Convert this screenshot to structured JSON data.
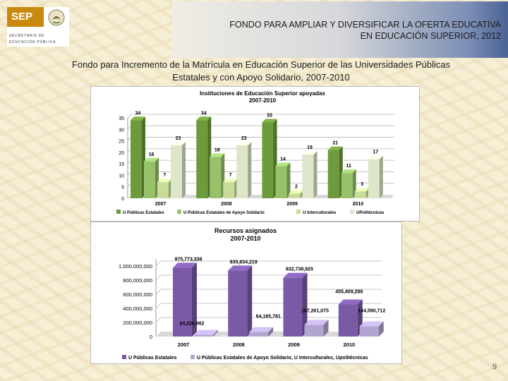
{
  "header": {
    "logo": {
      "brand": "SEP",
      "line1": "SECRETARÍA DE",
      "line2": "EDUCACIÓN PÚBLICA"
    },
    "title_line1": "FONDO PARA AMPLIAR Y DIVERSIFICAR LA OFERTA EDUCATIVA",
    "title_line2": "EN EDUCACIÓN SUPERIOR, 2012"
  },
  "subtitle": {
    "line1": "Fondo para Incremento de la Matrícula en Educación Superior de las Universidades Públicas",
    "line2": "Estatales y con Apoyo Solidario, 2007-2010"
  },
  "colors": {
    "purple": "#7a5aa6",
    "lavender": "#b3a5d1",
    "green1": "#6d9a3a",
    "green2": "#97c26a",
    "green3": "#c8dc9a",
    "green4": "#dde6c8"
  },
  "chart_data": [
    {
      "type": "bar",
      "title": "Instituciones de Educación Superior  apoyadas",
      "subtitle": "2007-2010",
      "categories": [
        "2007",
        "2008",
        "2009",
        "2010"
      ],
      "series": [
        {
          "name": "U Públicas Estatales",
          "values": [
            34,
            34,
            33,
            21
          ],
          "labels": [
            "34",
            "34",
            "33",
            "21"
          ]
        },
        {
          "name": "U Públicas Estatales de Apoyo Solidario",
          "values": [
            16,
            18,
            14,
            11
          ],
          "labels": [
            "16",
            "18",
            "14",
            "11"
          ]
        },
        {
          "name": "U Interculturales",
          "values": [
            7,
            7,
            2,
            3
          ],
          "labels": [
            "7",
            "7",
            "2",
            "3"
          ]
        },
        {
          "name": "UPolitécnicas",
          "values": [
            23,
            23,
            19,
            17
          ],
          "labels": [
            "23",
            "23",
            "19",
            "17"
          ]
        }
      ],
      "ylim": [
        0,
        35
      ],
      "yticks": [
        "0",
        "5",
        "10",
        "15",
        "20",
        "25",
        "30",
        "35"
      ]
    },
    {
      "type": "bar",
      "title": "Recursos asignados",
      "subtitle": "2007-2010",
      "categories": [
        "2007",
        "2008",
        "2009",
        "2010"
      ],
      "series": [
        {
          "name": "U Públicas Estatales",
          "values": [
            975773338,
            935834219,
            832738925,
            455409288
          ],
          "labels": [
            "975,773,338",
            "935,834,219",
            "832,738,925",
            "455,409,288"
          ]
        },
        {
          "name": "U Públicas Estatales de Apoyo Solidario, U Interculturales, Upolitécnicas",
          "values": [
            24226662,
            64165781,
            167261075,
            144590712
          ],
          "labels": [
            "24,226,662",
            "64,165,781",
            "167,261,075",
            "144,590,712"
          ]
        }
      ],
      "ylim": [
        0,
        1100000000
      ],
      "yticks": [
        "0",
        "200,000,000",
        "400,000,000",
        "600,000,000",
        "800,000,000",
        "1,000,000,000"
      ]
    }
  ],
  "page_number": "9"
}
